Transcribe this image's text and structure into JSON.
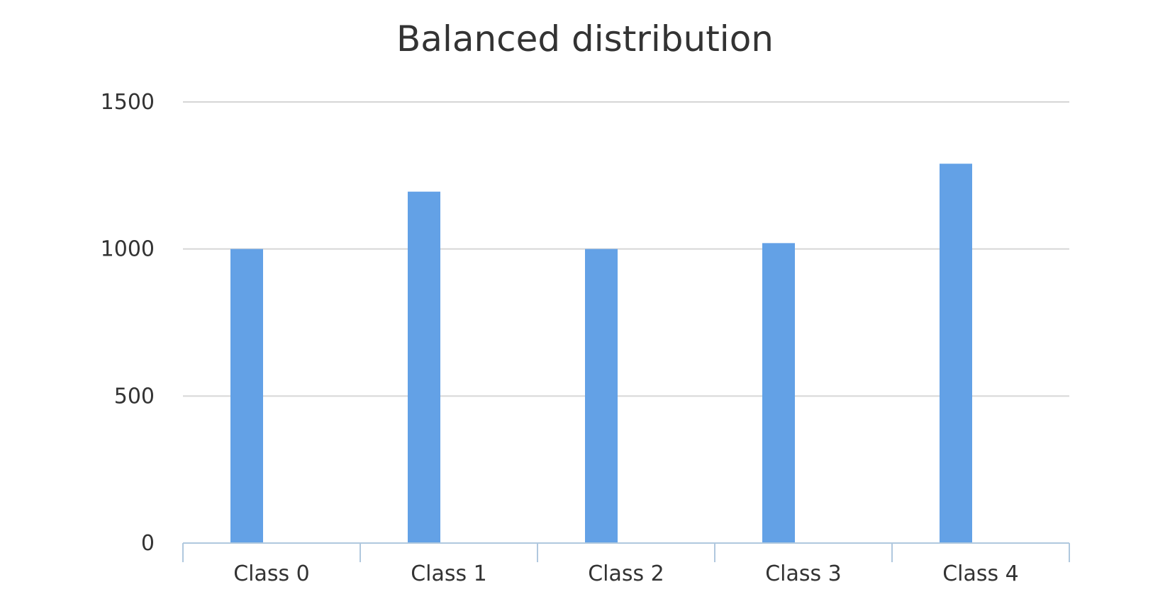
{
  "chart_data": {
    "type": "bar",
    "title": "Balanced distribution",
    "xlabel": "",
    "ylabel": "",
    "categories": [
      "Class 0",
      "Class 1",
      "Class 2",
      "Class 3",
      "Class 4"
    ],
    "values": [
      1000,
      1195,
      1000,
      1020,
      1290
    ],
    "ylim": [
      0,
      1500
    ],
    "yticks": [
      0,
      500,
      1000,
      1500
    ],
    "grid": true,
    "legend": "none",
    "bar_color": "#63a1e6",
    "grid_color": "#d6d6d6",
    "axis_color": "#b0c8de"
  }
}
